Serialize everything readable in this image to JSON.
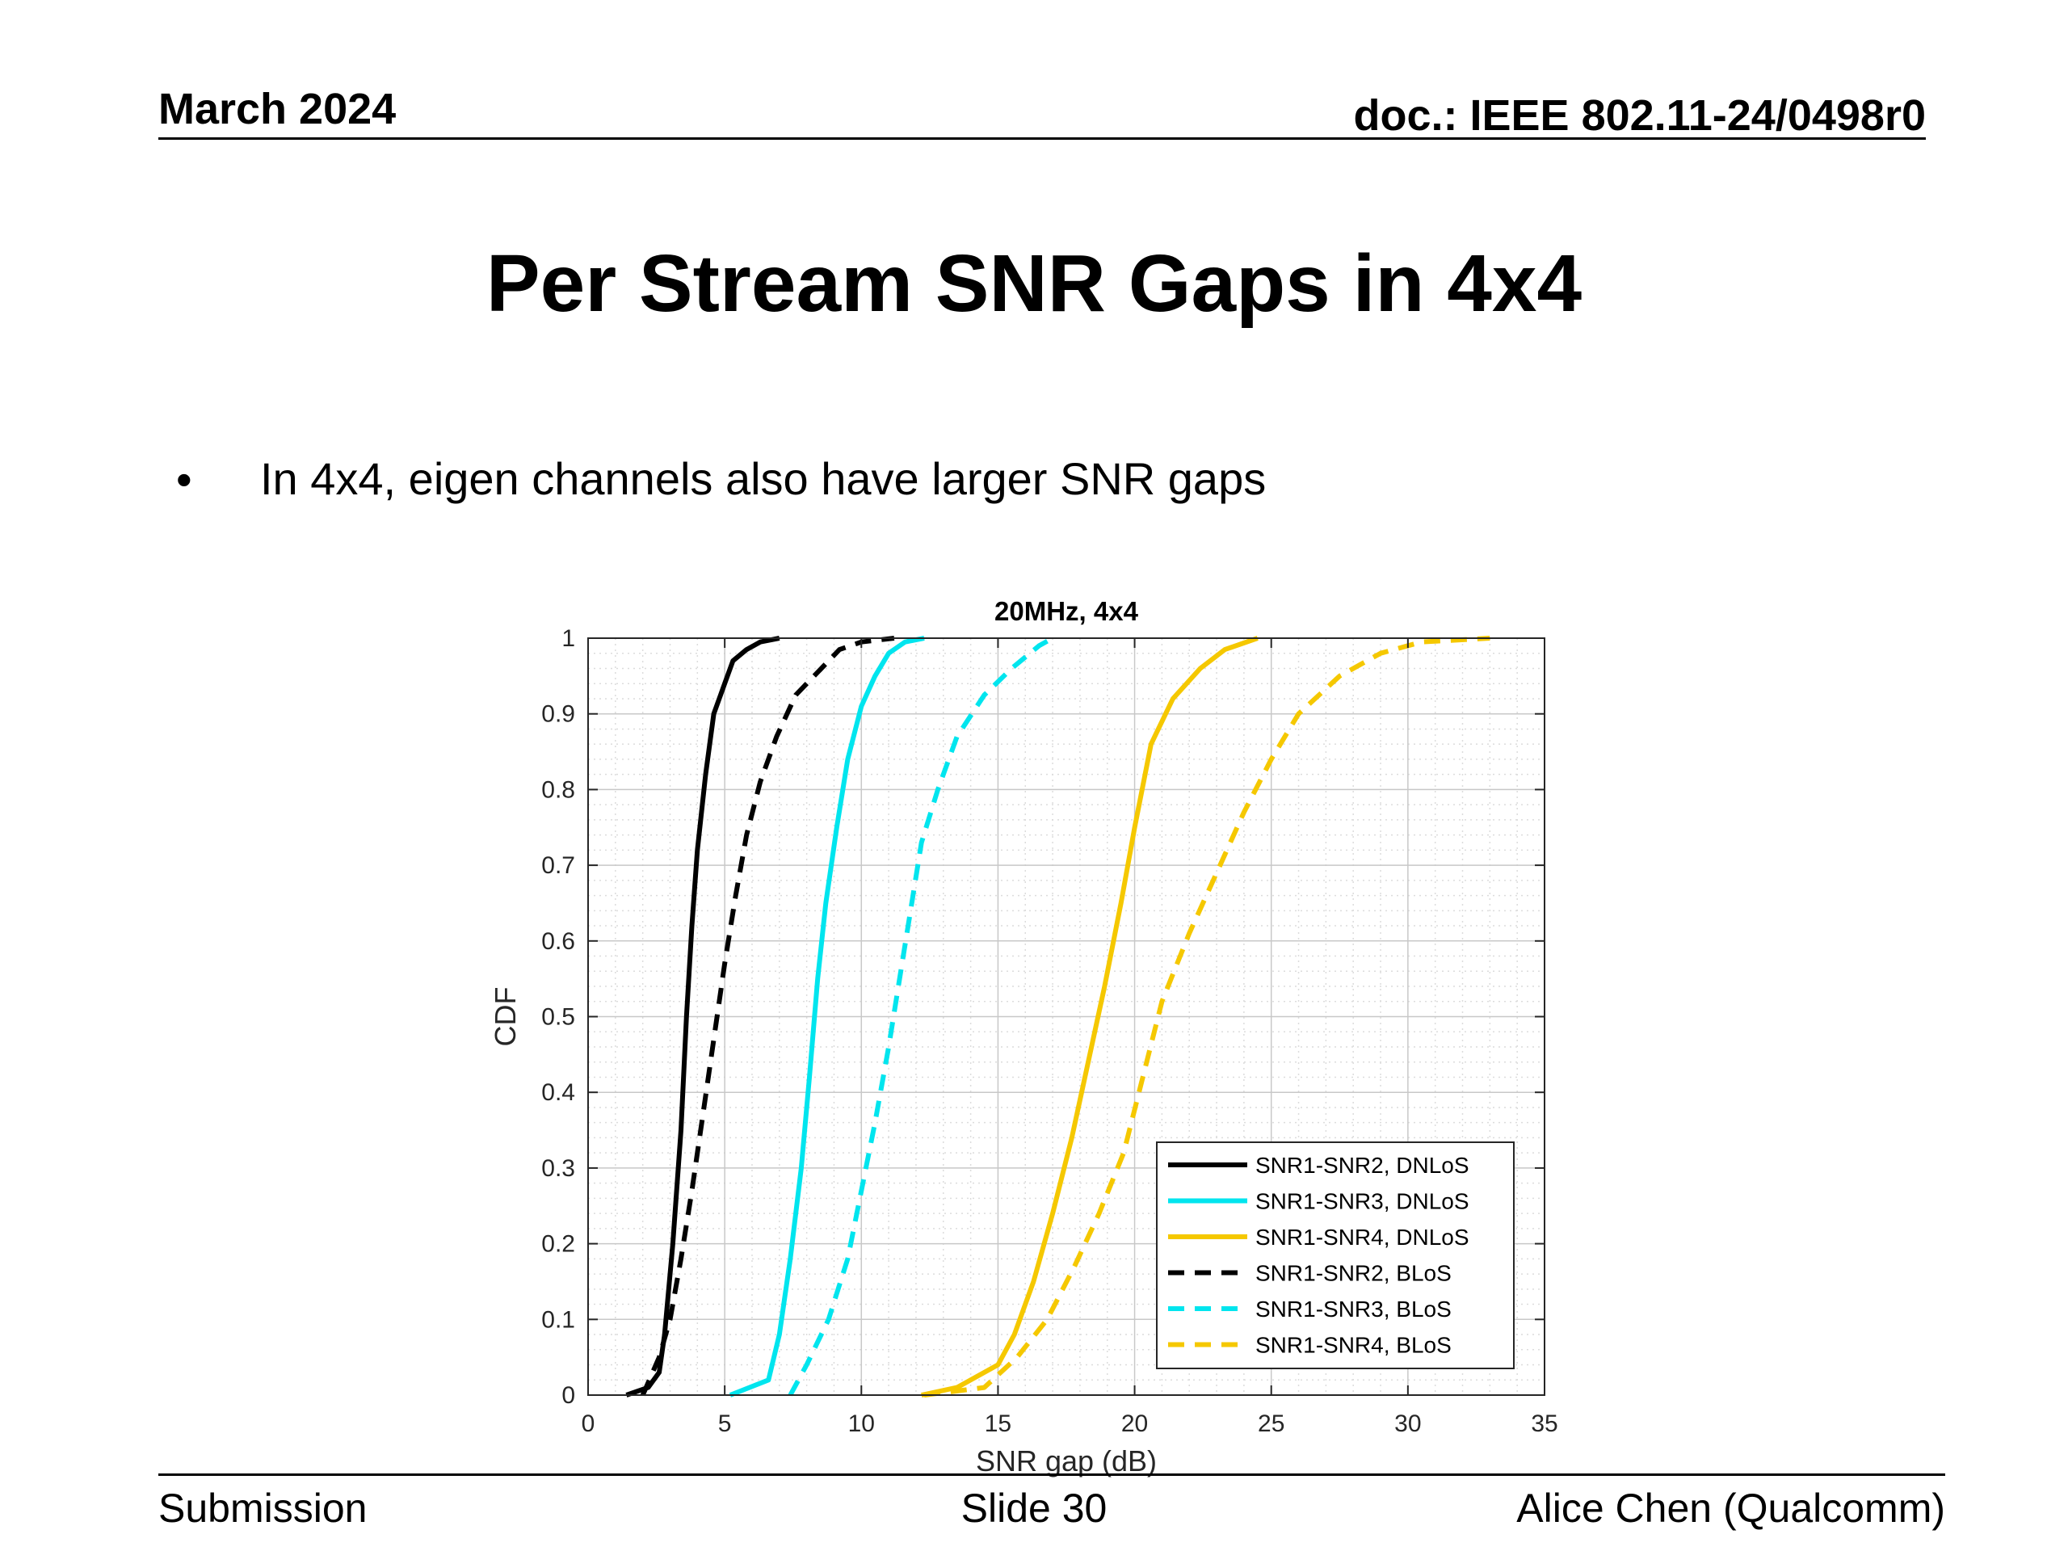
{
  "header": {
    "left": "March 2024",
    "right": "doc.: IEEE 802.11-24/0498r0"
  },
  "slide": {
    "title": "Per Stream SNR Gaps in 4x4",
    "bullets": [
      "In 4x4, eigen channels also have larger SNR gaps"
    ]
  },
  "footer": {
    "left": "Submission",
    "center": "Slide 30",
    "right": "Alice Chen (Qualcomm)"
  },
  "chart_data": {
    "type": "line",
    "title": "20MHz, 4x4",
    "xlabel": "SNR gap (dB)",
    "ylabel": "CDF",
    "xlim": [
      0,
      35
    ],
    "ylim": [
      0,
      1
    ],
    "xticks": [
      0,
      5,
      10,
      15,
      20,
      25,
      30,
      35
    ],
    "yticks": [
      0,
      0.1,
      0.2,
      0.3,
      0.4,
      0.5,
      0.6,
      0.7,
      0.8,
      0.9,
      1
    ],
    "grid": true,
    "minor_grid": true,
    "legend_position": "bottom-right",
    "series": [
      {
        "name": "SNR1-SNR2, DNLoS",
        "color": "#000000",
        "style": "solid",
        "x": [
          1.4,
          2.2,
          2.6,
          2.8,
          3.1,
          3.4,
          3.6,
          3.8,
          4.0,
          4.3,
          4.6,
          5.0,
          5.3,
          5.8,
          6.3,
          7.0
        ],
        "y": [
          0.0,
          0.01,
          0.03,
          0.08,
          0.2,
          0.35,
          0.5,
          0.62,
          0.72,
          0.82,
          0.9,
          0.94,
          0.97,
          0.985,
          0.995,
          1.0
        ]
      },
      {
        "name": "SNR1-SNR3, DNLoS",
        "color": "#00e5ee",
        "style": "solid",
        "x": [
          5.2,
          6.6,
          7.0,
          7.4,
          7.8,
          8.1,
          8.4,
          8.7,
          9.1,
          9.5,
          10.0,
          10.5,
          11.0,
          11.6,
          12.3
        ],
        "y": [
          0.0,
          0.02,
          0.08,
          0.18,
          0.3,
          0.42,
          0.55,
          0.65,
          0.75,
          0.84,
          0.91,
          0.95,
          0.98,
          0.995,
          1.0
        ]
      },
      {
        "name": "SNR1-SNR4, DNLoS",
        "color": "#f5c800",
        "style": "solid",
        "x": [
          12.2,
          13.5,
          15.0,
          15.6,
          16.3,
          17.0,
          17.7,
          18.3,
          18.9,
          19.5,
          20.0,
          20.6,
          21.4,
          22.4,
          23.3,
          24.5
        ],
        "y": [
          0.0,
          0.01,
          0.04,
          0.08,
          0.15,
          0.24,
          0.34,
          0.44,
          0.54,
          0.65,
          0.75,
          0.86,
          0.92,
          0.96,
          0.985,
          1.0
        ]
      },
      {
        "name": "SNR1-SNR2, BLoS",
        "color": "#000000",
        "style": "dashed",
        "x": [
          2.0,
          2.6,
          3.0,
          3.4,
          3.8,
          4.2,
          4.6,
          5.0,
          5.4,
          5.8,
          6.3,
          6.9,
          7.6,
          8.4,
          9.2,
          10.0,
          11.2
        ],
        "y": [
          0.0,
          0.05,
          0.1,
          0.18,
          0.27,
          0.37,
          0.47,
          0.57,
          0.66,
          0.74,
          0.81,
          0.87,
          0.925,
          0.955,
          0.985,
          0.995,
          1.0
        ]
      },
      {
        "name": "SNR1-SNR3, BLoS",
        "color": "#00e5ee",
        "style": "dashed",
        "x": [
          7.4,
          8.0,
          8.8,
          9.5,
          10.0,
          10.5,
          11.0,
          11.4,
          11.8,
          12.2,
          12.8,
          13.5,
          14.5,
          15.5,
          16.5,
          17.0
        ],
        "y": [
          0.0,
          0.04,
          0.1,
          0.18,
          0.27,
          0.36,
          0.46,
          0.55,
          0.64,
          0.73,
          0.8,
          0.87,
          0.925,
          0.96,
          0.99,
          1.0
        ]
      },
      {
        "name": "SNR1-SNR4, BLoS",
        "color": "#f5c800",
        "style": "dashed",
        "x": [
          12.3,
          14.5,
          15.7,
          16.8,
          17.8,
          18.7,
          19.6,
          20.3,
          21.0,
          22.0,
          23.0,
          24.0,
          25.0,
          26.0,
          27.5,
          29.0,
          30.5,
          33.0
        ],
        "y": [
          0.0,
          0.01,
          0.05,
          0.1,
          0.17,
          0.24,
          0.32,
          0.42,
          0.52,
          0.61,
          0.69,
          0.77,
          0.84,
          0.9,
          0.95,
          0.98,
          0.995,
          1.0
        ]
      }
    ]
  }
}
